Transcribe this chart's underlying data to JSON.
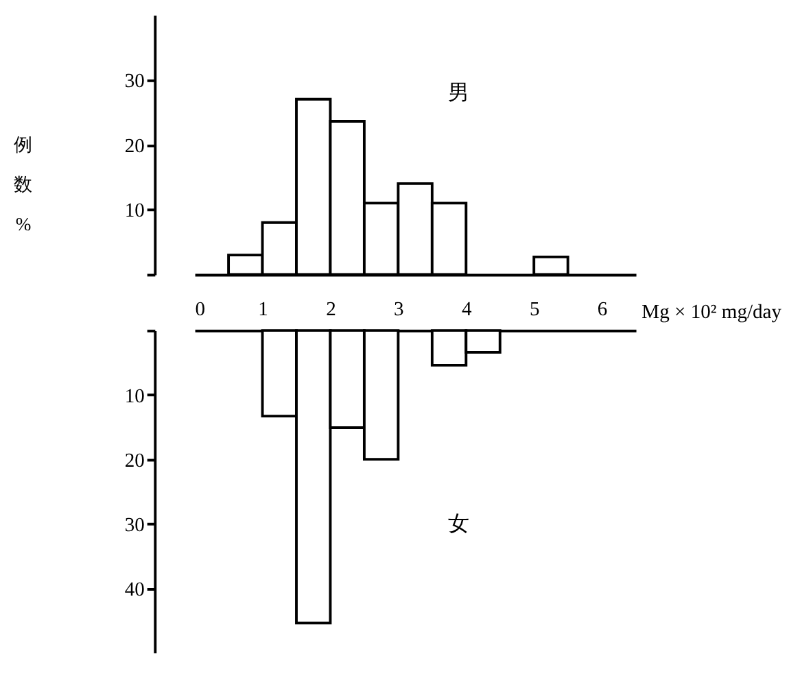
{
  "chart_data": [
    {
      "type": "histogram",
      "xlabel": "Mg × 10² mg/day",
      "ylabel": "例数%",
      "bins": [
        0,
        0.5,
        1,
        1.5,
        2,
        2.5,
        3,
        3.5,
        4,
        4.5,
        5,
        5.5,
        6,
        6.5
      ],
      "series": [
        {
          "name": "男",
          "color": "#ffffff",
          "values": [
            0,
            3,
            8,
            27,
            23.6,
            11,
            14,
            11,
            0,
            0,
            2.7,
            0,
            0
          ]
        }
      ],
      "xlim": [
        0,
        6.5
      ],
      "xticks": [
        0,
        1,
        2,
        3,
        4,
        5,
        6
      ],
      "ylim": [
        0,
        40
      ],
      "yticks": [
        {
          "value": 0,
          "label": null
        },
        10,
        20,
        30
      ],
      "grid": false
    },
    {
      "type": "histogram",
      "bins": [
        0,
        0.5,
        1,
        1.5,
        2,
        2.5,
        3,
        3.5,
        4,
        4.5,
        5,
        5.5,
        6,
        6.5
      ],
      "series": [
        {
          "name": "女",
          "color": "#ffffff",
          "values": [
            0,
            0,
            13.3,
            45.4,
            15.1,
            20,
            0,
            5.4,
            3.4,
            0,
            0,
            0,
            0
          ]
        }
      ],
      "xlim": [
        0,
        6.5
      ],
      "xticks": [
        0,
        1,
        2,
        3,
        4,
        5,
        6
      ],
      "ylim": [
        50,
        0
      ],
      "yticks": [
        {
          "value": 0,
          "label": null
        },
        10,
        20,
        30,
        40
      ],
      "tick_labels": "y",
      "grid": false
    }
  ]
}
